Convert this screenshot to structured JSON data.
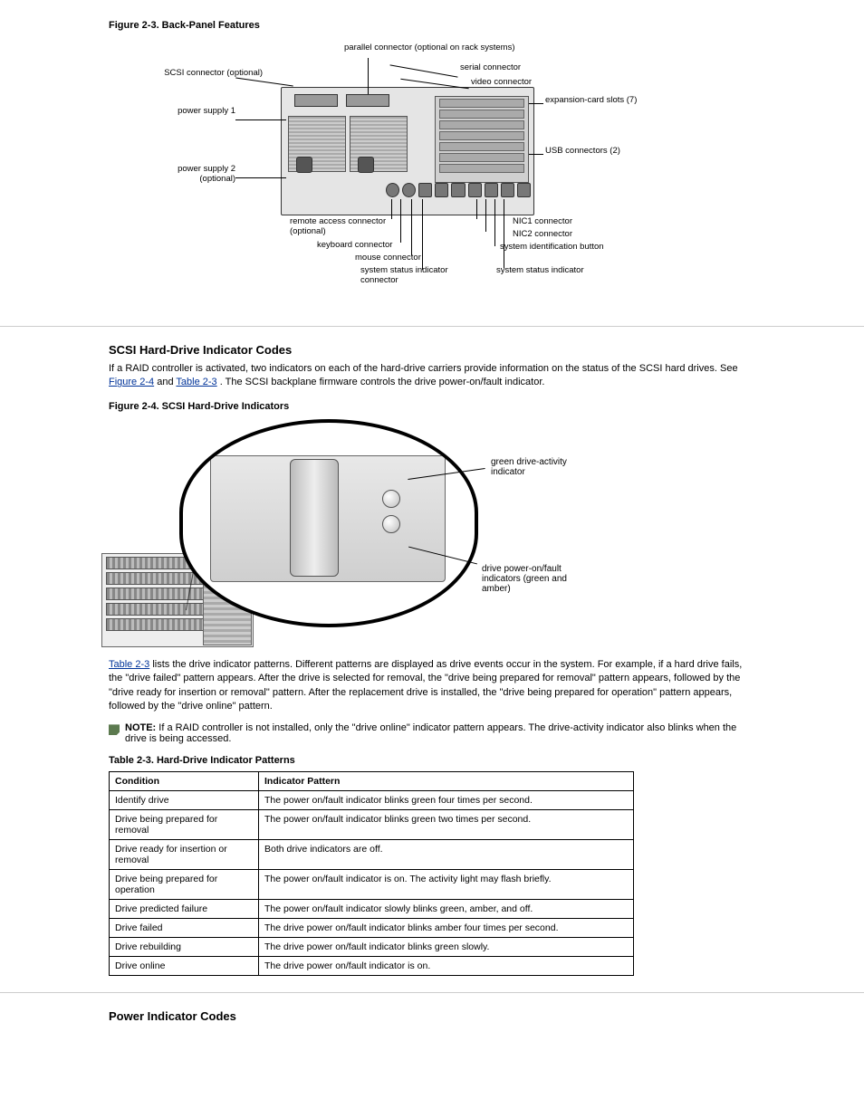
{
  "fig1": {
    "caption": "Figure 2-3. Back-Panel Features",
    "labels": {
      "parallel": "parallel connector (optional on rack systems)",
      "serial": "serial connector",
      "video": "video connector",
      "expansion": "expansion-card slots (7)",
      "usb": "USB connectors (2)",
      "scsi": "SCSI connector (optional)",
      "ps1": "power supply 1",
      "ps2": "power supply 2 (optional)",
      "remote": "remote access connector (optional)",
      "keyboard": "keyboard connector",
      "mouse": "mouse connector",
      "sysconn": "system status indicator connector",
      "nic1": "NIC1 connector",
      "nic2": "NIC2 connector",
      "idbtn": "system identification button",
      "stat": "system status indicator"
    }
  },
  "hd_section_title": "SCSI Hard-Drive Indicator Codes",
  "hd_para_before": "If a RAID controller is activated, two indicators on each of the hard-drive carriers provide information on the status of the SCSI hard drives. See ",
  "hd_link1": "Figure 2-4",
  "hd_para_mid": " and ",
  "hd_link2": "Table 2-3",
  "hd_para_after": ". The SCSI backplane firmware controls the drive power-on/fault indicator.",
  "fig2": {
    "caption": "Figure 2-4. SCSI Hard-Drive Indicators",
    "green": "green drive-activity indicator",
    "fault": "drive power-on/fault indicators (green and amber)"
  },
  "post_fig_text_a": "Table 2-3",
  "post_fig_text_b": " lists the drive indicator patterns. Different patterns are displayed as drive events occur in the system. For example, if a hard drive fails, the \"drive failed\" pattern appears. After the drive is selected for removal, the \"drive being prepared for removal\" pattern appears, followed by the \"drive ready for insertion or removal\" pattern. After the replacement drive is installed, the \"drive being prepared for operation\" pattern appears, followed by the \"drive online\" pattern.",
  "note_label": "NOTE: ",
  "note_text": "If a RAID controller is not installed, only the \"drive online\" indicator pattern appears. The drive-activity indicator also blinks when the drive is being accessed.",
  "table": {
    "title": "Table 2-3. Hard-Drive Indicator Patterns",
    "headers": [
      "Condition",
      "Indicator Pattern"
    ],
    "rows": [
      [
        "Identify drive",
        "The power on/fault indicator blinks green four times per second."
      ],
      [
        "Drive being prepared for removal",
        "The power on/fault indicator blinks green two times per second."
      ],
      [
        "Drive ready for insertion or removal",
        "Both drive indicators are off."
      ],
      [
        "Drive being prepared for operation",
        "The power on/fault indicator is on. The activity light may flash briefly."
      ],
      [
        "Drive predicted failure",
        "The power on/fault indicator slowly blinks green, amber, and off."
      ],
      [
        "Drive failed",
        "The drive power on/fault indicator blinks amber four times per second."
      ],
      [
        "Drive rebuilding",
        "The drive power on/fault indicator blinks green slowly."
      ],
      [
        "Drive online",
        "The drive power on/fault indicator is on."
      ]
    ]
  },
  "power_section_title": "Power Indicator Codes"
}
